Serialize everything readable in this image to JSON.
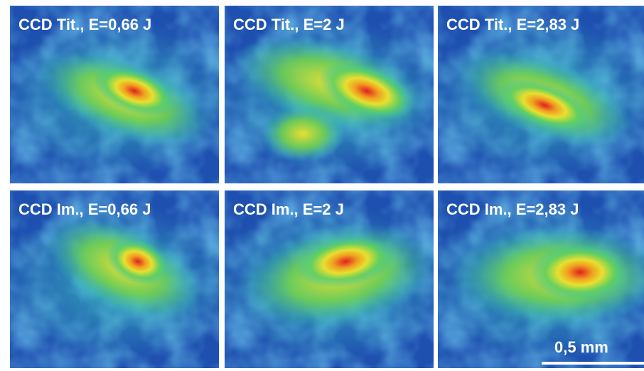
{
  "panels": [
    {
      "label": "CCD Tit., E=0,66 J"
    },
    {
      "label": "CCD Tit., E=2 J"
    },
    {
      "label": "CCD Tit., E=2,83 J"
    },
    {
      "label": "CCD Im., E=0,66 J"
    },
    {
      "label": "CCD Im., E=2 J"
    },
    {
      "label": "CCD Im., E=2,83 J"
    }
  ],
  "scale_bar": "0,5 mm"
}
